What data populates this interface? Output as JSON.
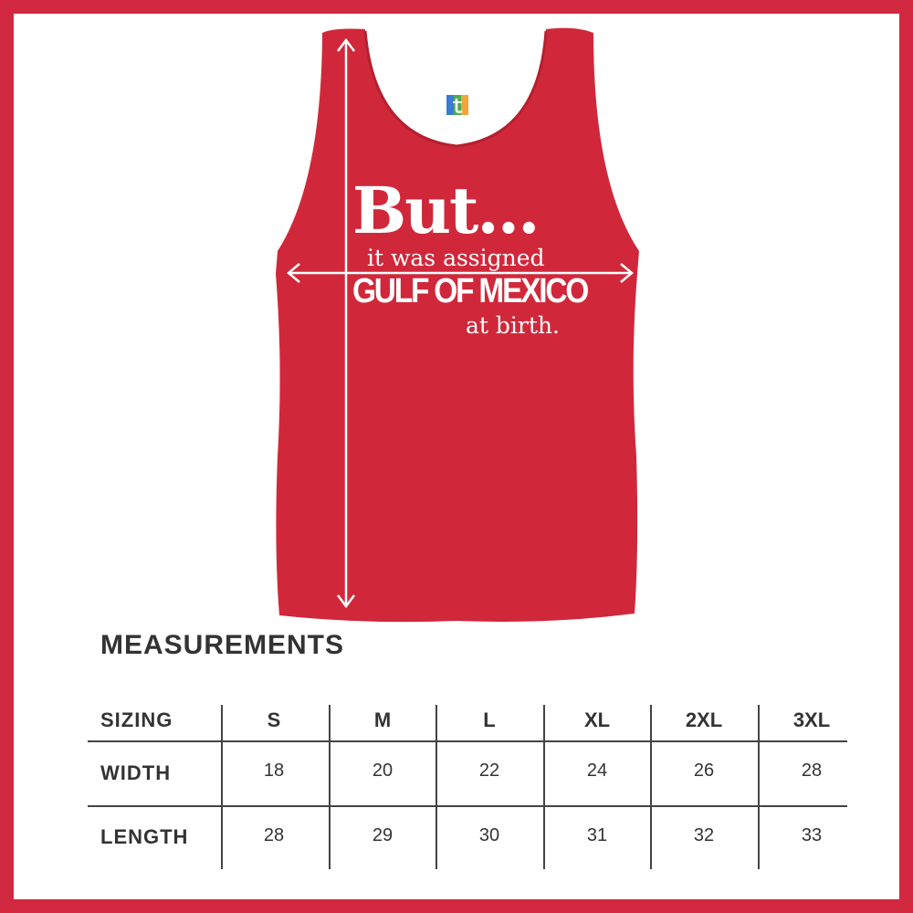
{
  "colors": {
    "border": "#d1283f",
    "shirt": "#d0283a",
    "text": "#333333"
  },
  "product": {
    "logo": "t",
    "print": {
      "line1": "But...",
      "line2": "it was assigned",
      "line3": "GULF OF MEXICO",
      "line4": "at birth."
    }
  },
  "measurements": {
    "title": "MEASUREMENTS",
    "header": {
      "label": "SIZING",
      "sizes": [
        "S",
        "M",
        "L",
        "XL",
        "2XL",
        "3XL"
      ]
    },
    "rows": [
      {
        "label": "WIDTH",
        "values": [
          "18",
          "20",
          "22",
          "24",
          "26",
          "28"
        ]
      },
      {
        "label": "LENGTH",
        "values": [
          "28",
          "29",
          "30",
          "31",
          "32",
          "33"
        ]
      }
    ]
  }
}
